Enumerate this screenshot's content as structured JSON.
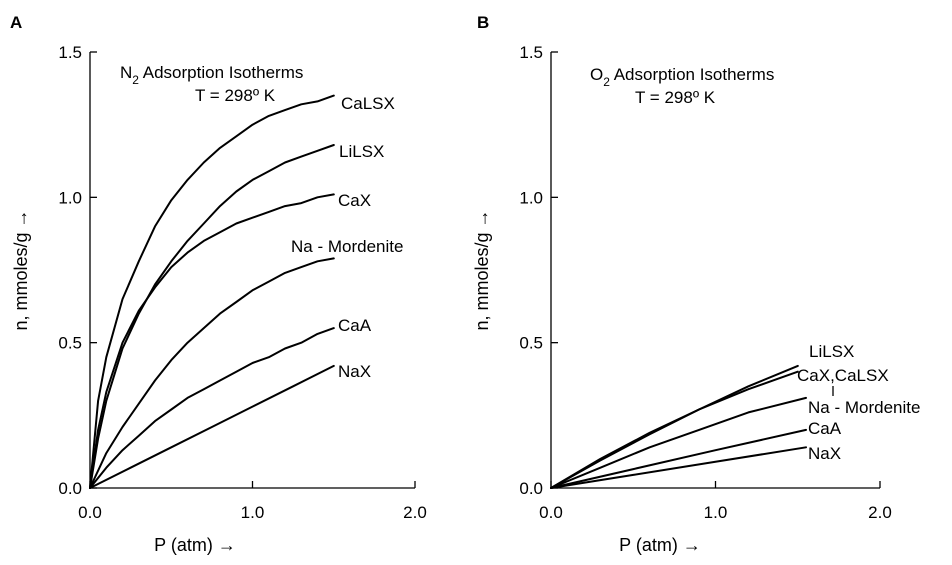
{
  "chart_data": [
    {
      "type": "line",
      "panel_label": "A",
      "title_species": "N",
      "title_subscript": "2",
      "title_rest": " Adsorption Isotherms",
      "subtitle": "T = 298º K",
      "xlabel": "P (atm) →",
      "ylabel": "n, mmoles/g →",
      "xlim": [
        0,
        2.0
      ],
      "ylim": [
        0,
        1.5
      ],
      "xticks": [
        "0.0",
        "1.0",
        "2.0"
      ],
      "yticks": [
        "0.0",
        "0.5",
        "1.0",
        "1.5"
      ],
      "x_tick_values": [
        0,
        1.0,
        2.0
      ],
      "y_tick_values": [
        0,
        0.5,
        1.0,
        1.5
      ],
      "grid": false,
      "series": [
        {
          "name": "CaLSX",
          "x": [
            0,
            0.05,
            0.1,
            0.2,
            0.3,
            0.4,
            0.5,
            0.6,
            0.7,
            0.8,
            0.9,
            1.0,
            1.1,
            1.2,
            1.3,
            1.4,
            1.5
          ],
          "y": [
            0,
            0.3,
            0.45,
            0.65,
            0.78,
            0.9,
            0.99,
            1.06,
            1.12,
            1.17,
            1.21,
            1.25,
            1.28,
            1.3,
            1.32,
            1.33,
            1.35
          ]
        },
        {
          "name": "LiLSX",
          "x": [
            0,
            0.05,
            0.1,
            0.2,
            0.3,
            0.4,
            0.5,
            0.6,
            0.7,
            0.8,
            0.9,
            1.0,
            1.1,
            1.2,
            1.3,
            1.4,
            1.5
          ],
          "y": [
            0,
            0.17,
            0.3,
            0.48,
            0.6,
            0.7,
            0.78,
            0.85,
            0.91,
            0.97,
            1.02,
            1.06,
            1.09,
            1.12,
            1.14,
            1.16,
            1.18
          ]
        },
        {
          "name": "CaX",
          "x": [
            0,
            0.05,
            0.1,
            0.2,
            0.3,
            0.4,
            0.5,
            0.6,
            0.7,
            0.8,
            0.9,
            1.0,
            1.1,
            1.2,
            1.3,
            1.4,
            1.5
          ],
          "y": [
            0,
            0.2,
            0.33,
            0.5,
            0.61,
            0.69,
            0.76,
            0.81,
            0.85,
            0.88,
            0.91,
            0.93,
            0.95,
            0.97,
            0.98,
            1.0,
            1.01
          ]
        },
        {
          "name": "Na - Mordenite",
          "x": [
            0,
            0.1,
            0.2,
            0.3,
            0.4,
            0.5,
            0.6,
            0.7,
            0.8,
            0.9,
            1.0,
            1.1,
            1.2,
            1.3,
            1.4,
            1.5
          ],
          "y": [
            0,
            0.12,
            0.21,
            0.29,
            0.37,
            0.44,
            0.5,
            0.55,
            0.6,
            0.64,
            0.68,
            0.71,
            0.74,
            0.76,
            0.78,
            0.79
          ]
        },
        {
          "name": "CaA",
          "x": [
            0,
            0.1,
            0.2,
            0.3,
            0.4,
            0.5,
            0.6,
            0.7,
            0.8,
            0.9,
            1.0,
            1.1,
            1.2,
            1.3,
            1.4,
            1.5
          ],
          "y": [
            0,
            0.07,
            0.13,
            0.18,
            0.23,
            0.27,
            0.31,
            0.34,
            0.37,
            0.4,
            0.43,
            0.45,
            0.48,
            0.5,
            0.53,
            0.55
          ]
        },
        {
          "name": "NaX",
          "x": [
            0,
            0.25,
            0.5,
            0.75,
            1.0,
            1.25,
            1.5
          ],
          "y": [
            0,
            0.07,
            0.14,
            0.21,
            0.28,
            0.35,
            0.42
          ]
        }
      ]
    },
    {
      "type": "line",
      "panel_label": "B",
      "title_species": "O",
      "title_subscript": "2",
      "title_rest": " Adsorption Isotherms",
      "subtitle": "T = 298º K",
      "xlabel": "P (atm) →",
      "ylabel": "n, mmoles/g →",
      "xlim": [
        0,
        2.0
      ],
      "ylim": [
        0,
        1.5
      ],
      "xticks": [
        "0.0",
        "1.0",
        "2.0"
      ],
      "yticks": [
        "0.0",
        "0.5",
        "1.0",
        "1.5"
      ],
      "x_tick_values": [
        0,
        1.0,
        2.0
      ],
      "y_tick_values": [
        0,
        0.5,
        1.0,
        1.5
      ],
      "grid": false,
      "series": [
        {
          "name": "LiLSX",
          "x": [
            0,
            0.3,
            0.6,
            0.9,
            1.2,
            1.5
          ],
          "y": [
            0,
            0.1,
            0.19,
            0.27,
            0.35,
            0.42
          ]
        },
        {
          "name": "CaX,CaLSX",
          "x": [
            0,
            0.3,
            0.6,
            0.9,
            1.2,
            1.5
          ],
          "y": [
            0,
            0.095,
            0.185,
            0.27,
            0.34,
            0.4
          ]
        },
        {
          "name": "Na - Mordenite",
          "x": [
            0,
            0.3,
            0.6,
            0.9,
            1.2,
            1.55
          ],
          "y": [
            0,
            0.07,
            0.14,
            0.2,
            0.26,
            0.31
          ]
        },
        {
          "name": "CaA",
          "x": [
            0,
            0.5,
            1.0,
            1.55
          ],
          "y": [
            0,
            0.065,
            0.13,
            0.2
          ]
        },
        {
          "name": "NaX",
          "x": [
            0,
            0.5,
            1.0,
            1.55
          ],
          "y": [
            0,
            0.045,
            0.09,
            0.14
          ]
        }
      ]
    }
  ]
}
